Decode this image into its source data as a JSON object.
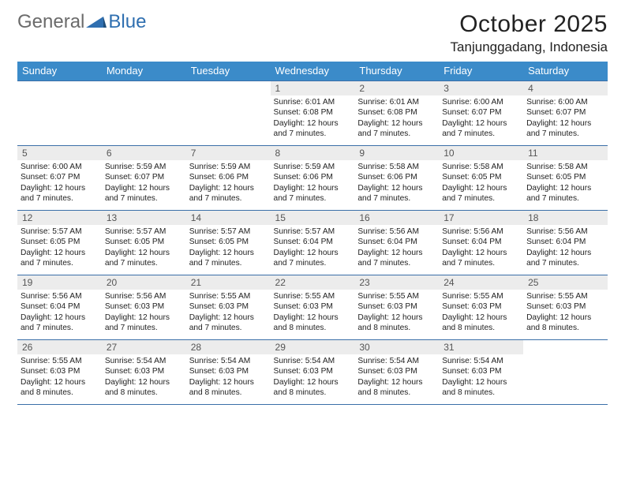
{
  "brand": {
    "part1": "General",
    "part2": "Blue"
  },
  "title": "October 2025",
  "location": "Tanjunggadang, Indonesia",
  "colors": {
    "header_bg": "#3b8bc9",
    "header_text": "#ffffff",
    "row_border": "#3b6fa8",
    "daynum_bg": "#ececec",
    "daynum_text": "#555555",
    "body_text": "#222222",
    "brand_gray": "#6b6b6b",
    "brand_blue": "#2f6fb0"
  },
  "day_headers": [
    "Sunday",
    "Monday",
    "Tuesday",
    "Wednesday",
    "Thursday",
    "Friday",
    "Saturday"
  ],
  "weeks": [
    [
      {
        "n": "",
        "sr": "",
        "ss": "",
        "dl": ""
      },
      {
        "n": "",
        "sr": "",
        "ss": "",
        "dl": ""
      },
      {
        "n": "",
        "sr": "",
        "ss": "",
        "dl": ""
      },
      {
        "n": "1",
        "sr": "Sunrise: 6:01 AM",
        "ss": "Sunset: 6:08 PM",
        "dl": "Daylight: 12 hours and 7 minutes."
      },
      {
        "n": "2",
        "sr": "Sunrise: 6:01 AM",
        "ss": "Sunset: 6:08 PM",
        "dl": "Daylight: 12 hours and 7 minutes."
      },
      {
        "n": "3",
        "sr": "Sunrise: 6:00 AM",
        "ss": "Sunset: 6:07 PM",
        "dl": "Daylight: 12 hours and 7 minutes."
      },
      {
        "n": "4",
        "sr": "Sunrise: 6:00 AM",
        "ss": "Sunset: 6:07 PM",
        "dl": "Daylight: 12 hours and 7 minutes."
      }
    ],
    [
      {
        "n": "5",
        "sr": "Sunrise: 6:00 AM",
        "ss": "Sunset: 6:07 PM",
        "dl": "Daylight: 12 hours and 7 minutes."
      },
      {
        "n": "6",
        "sr": "Sunrise: 5:59 AM",
        "ss": "Sunset: 6:07 PM",
        "dl": "Daylight: 12 hours and 7 minutes."
      },
      {
        "n": "7",
        "sr": "Sunrise: 5:59 AM",
        "ss": "Sunset: 6:06 PM",
        "dl": "Daylight: 12 hours and 7 minutes."
      },
      {
        "n": "8",
        "sr": "Sunrise: 5:59 AM",
        "ss": "Sunset: 6:06 PM",
        "dl": "Daylight: 12 hours and 7 minutes."
      },
      {
        "n": "9",
        "sr": "Sunrise: 5:58 AM",
        "ss": "Sunset: 6:06 PM",
        "dl": "Daylight: 12 hours and 7 minutes."
      },
      {
        "n": "10",
        "sr": "Sunrise: 5:58 AM",
        "ss": "Sunset: 6:05 PM",
        "dl": "Daylight: 12 hours and 7 minutes."
      },
      {
        "n": "11",
        "sr": "Sunrise: 5:58 AM",
        "ss": "Sunset: 6:05 PM",
        "dl": "Daylight: 12 hours and 7 minutes."
      }
    ],
    [
      {
        "n": "12",
        "sr": "Sunrise: 5:57 AM",
        "ss": "Sunset: 6:05 PM",
        "dl": "Daylight: 12 hours and 7 minutes."
      },
      {
        "n": "13",
        "sr": "Sunrise: 5:57 AM",
        "ss": "Sunset: 6:05 PM",
        "dl": "Daylight: 12 hours and 7 minutes."
      },
      {
        "n": "14",
        "sr": "Sunrise: 5:57 AM",
        "ss": "Sunset: 6:05 PM",
        "dl": "Daylight: 12 hours and 7 minutes."
      },
      {
        "n": "15",
        "sr": "Sunrise: 5:57 AM",
        "ss": "Sunset: 6:04 PM",
        "dl": "Daylight: 12 hours and 7 minutes."
      },
      {
        "n": "16",
        "sr": "Sunrise: 5:56 AM",
        "ss": "Sunset: 6:04 PM",
        "dl": "Daylight: 12 hours and 7 minutes."
      },
      {
        "n": "17",
        "sr": "Sunrise: 5:56 AM",
        "ss": "Sunset: 6:04 PM",
        "dl": "Daylight: 12 hours and 7 minutes."
      },
      {
        "n": "18",
        "sr": "Sunrise: 5:56 AM",
        "ss": "Sunset: 6:04 PM",
        "dl": "Daylight: 12 hours and 7 minutes."
      }
    ],
    [
      {
        "n": "19",
        "sr": "Sunrise: 5:56 AM",
        "ss": "Sunset: 6:04 PM",
        "dl": "Daylight: 12 hours and 7 minutes."
      },
      {
        "n": "20",
        "sr": "Sunrise: 5:56 AM",
        "ss": "Sunset: 6:03 PM",
        "dl": "Daylight: 12 hours and 7 minutes."
      },
      {
        "n": "21",
        "sr": "Sunrise: 5:55 AM",
        "ss": "Sunset: 6:03 PM",
        "dl": "Daylight: 12 hours and 7 minutes."
      },
      {
        "n": "22",
        "sr": "Sunrise: 5:55 AM",
        "ss": "Sunset: 6:03 PM",
        "dl": "Daylight: 12 hours and 8 minutes."
      },
      {
        "n": "23",
        "sr": "Sunrise: 5:55 AM",
        "ss": "Sunset: 6:03 PM",
        "dl": "Daylight: 12 hours and 8 minutes."
      },
      {
        "n": "24",
        "sr": "Sunrise: 5:55 AM",
        "ss": "Sunset: 6:03 PM",
        "dl": "Daylight: 12 hours and 8 minutes."
      },
      {
        "n": "25",
        "sr": "Sunrise: 5:55 AM",
        "ss": "Sunset: 6:03 PM",
        "dl": "Daylight: 12 hours and 8 minutes."
      }
    ],
    [
      {
        "n": "26",
        "sr": "Sunrise: 5:55 AM",
        "ss": "Sunset: 6:03 PM",
        "dl": "Daylight: 12 hours and 8 minutes."
      },
      {
        "n": "27",
        "sr": "Sunrise: 5:54 AM",
        "ss": "Sunset: 6:03 PM",
        "dl": "Daylight: 12 hours and 8 minutes."
      },
      {
        "n": "28",
        "sr": "Sunrise: 5:54 AM",
        "ss": "Sunset: 6:03 PM",
        "dl": "Daylight: 12 hours and 8 minutes."
      },
      {
        "n": "29",
        "sr": "Sunrise: 5:54 AM",
        "ss": "Sunset: 6:03 PM",
        "dl": "Daylight: 12 hours and 8 minutes."
      },
      {
        "n": "30",
        "sr": "Sunrise: 5:54 AM",
        "ss": "Sunset: 6:03 PM",
        "dl": "Daylight: 12 hours and 8 minutes."
      },
      {
        "n": "31",
        "sr": "Sunrise: 5:54 AM",
        "ss": "Sunset: 6:03 PM",
        "dl": "Daylight: 12 hours and 8 minutes."
      },
      {
        "n": "",
        "sr": "",
        "ss": "",
        "dl": ""
      }
    ]
  ]
}
